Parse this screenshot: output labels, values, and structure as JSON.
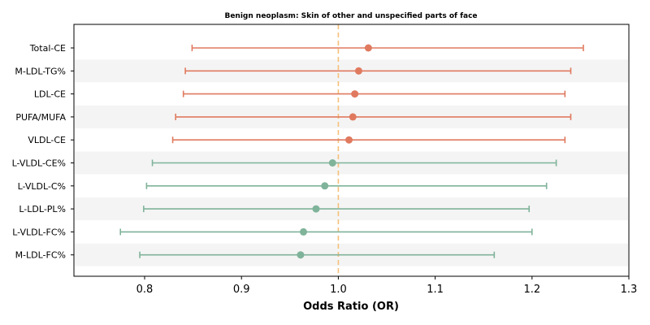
{
  "chart_data": {
    "type": "forest",
    "title": "Benign neoplasm: Skin of other and unspecified parts of face",
    "xlabel": "Odds Ratio (OR)",
    "ylabel": "",
    "xlim": [
      0.727,
      1.3
    ],
    "xticks": [
      0.8,
      0.9,
      1.0,
      1.1,
      1.2,
      1.3
    ],
    "xtick_labels": [
      "0.8",
      "0.9",
      "1.0",
      "1.1",
      "1.2",
      "1.3"
    ],
    "reference_line": 1.0,
    "reference_line_color": "#f5c07a",
    "colors": {
      "above_one": "#e07a5f",
      "below_one": "#7fb39a",
      "row_band": "#f4f4f4"
    },
    "grid": false,
    "legend": "none",
    "categories": [
      "Total-CE",
      "M-LDL-TG%",
      "LDL-CE",
      "PUFA/MUFA",
      "VLDL-CE",
      "L-VLDL-CE%",
      "L-VLDL-C%",
      "L-LDL-PL%",
      "L-VLDL-FC%",
      "M-LDL-FC%"
    ],
    "or": [
      1.031,
      1.021,
      1.017,
      1.015,
      1.011,
      0.994,
      0.986,
      0.977,
      0.964,
      0.961
    ],
    "ci_lower": [
      0.849,
      0.842,
      0.84,
      0.832,
      0.829,
      0.808,
      0.802,
      0.799,
      0.775,
      0.795
    ],
    "ci_upper": [
      1.253,
      1.24,
      1.234,
      1.24,
      1.234,
      1.225,
      1.215,
      1.197,
      1.2,
      1.161
    ]
  }
}
